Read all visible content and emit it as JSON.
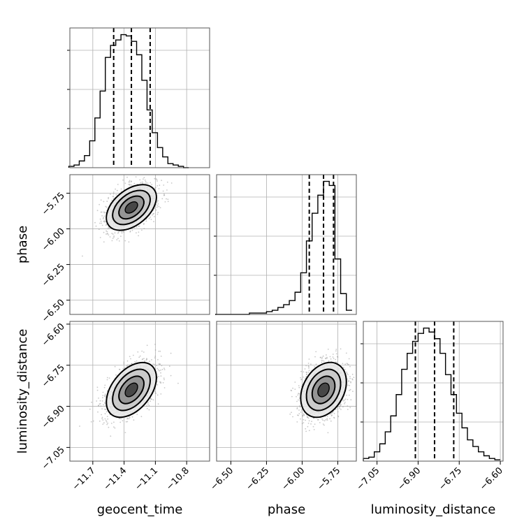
{
  "chart_data": {
    "type": "corner",
    "parameters": [
      {
        "name": "geocent_time",
        "range": [
          -11.92,
          -10.58
        ],
        "ticks": [
          -11.7,
          -11.4,
          -11.1,
          -10.8
        ],
        "tick_labels": [
          "−11.7",
          "−11.4",
          "−11.1",
          "−10.8"
        ],
        "quantiles": [
          -11.5,
          -11.33,
          -11.15
        ],
        "median": -11.33,
        "sigma": 0.12
      },
      {
        "name": "phase",
        "range": [
          -6.6,
          -5.62
        ],
        "ticks": [
          -6.5,
          -6.25,
          -6.0,
          -5.75
        ],
        "tick_labels": [
          "−6.50",
          "−6.25",
          "−6.00",
          "−5.75"
        ],
        "quantiles": [
          -5.95,
          -5.85,
          -5.78
        ],
        "median": -5.85,
        "sigma": 0.08
      },
      {
        "name": "luminosity_distance",
        "range": [
          -7.1,
          -6.59
        ],
        "ticks": [
          -7.05,
          -6.9,
          -6.75,
          -6.6
        ],
        "tick_labels": [
          "−7.05",
          "−6.90",
          "−6.75",
          "−6.60"
        ],
        "quantiles": [
          -6.91,
          -6.84,
          -6.77
        ],
        "median": -6.84,
        "sigma": 0.05
      }
    ],
    "histograms": [
      {
        "param": "geocent_time",
        "bin_edges": [
          -11.93,
          -11.88,
          -11.83,
          -11.78,
          -11.73,
          -11.68,
          -11.63,
          -11.58,
          -11.53,
          -11.48,
          -11.43,
          -11.38,
          -11.33,
          -11.28,
          -11.23,
          -11.18,
          -11.13,
          -11.08,
          -11.03,
          -10.98,
          -10.93,
          -10.88,
          -10.83,
          -10.78
        ],
        "counts": [
          1,
          2,
          5,
          9,
          20,
          37,
          57,
          82,
          91,
          95,
          99,
          98,
          94,
          84,
          65,
          43,
          26,
          15,
          8,
          3,
          2,
          1,
          0
        ]
      },
      {
        "param": "phase",
        "bin_edges": [
          -6.61,
          -6.57,
          -6.53,
          -6.49,
          -6.45,
          -6.41,
          -6.37,
          -6.33,
          -6.29,
          -6.25,
          -6.21,
          -6.17,
          -6.13,
          -6.09,
          -6.05,
          -6.01,
          -5.97,
          -5.93,
          -5.89,
          -5.85,
          -5.81,
          -5.77,
          -5.73,
          -5.69,
          -5.65
        ],
        "counts": [
          0,
          0,
          0,
          0,
          0,
          0,
          1,
          1,
          1,
          2,
          3,
          5,
          7,
          10,
          16,
          30,
          53,
          73,
          86,
          96,
          93,
          40,
          15,
          3
        ]
      },
      {
        "param": "luminosity_distance",
        "bin_edges": [
          -7.1,
          -7.08,
          -7.06,
          -7.04,
          -7.02,
          -7.0,
          -6.98,
          -6.96,
          -6.94,
          -6.92,
          -6.9,
          -6.88,
          -6.86,
          -6.84,
          -6.82,
          -6.8,
          -6.78,
          -6.76,
          -6.74,
          -6.72,
          -6.7,
          -6.68,
          -6.66,
          -6.64,
          -6.62,
          -6.6
        ],
        "counts": [
          2,
          3,
          7,
          13,
          22,
          34,
          50,
          69,
          81,
          90,
          96,
          100,
          97,
          92,
          81,
          65,
          50,
          36,
          25,
          16,
          11,
          7,
          4,
          2,
          1
        ]
      }
    ],
    "pair_correlations": [
      {
        "x": "geocent_time",
        "y": "phase",
        "rho": 0.45
      },
      {
        "x": "geocent_time",
        "y": "luminosity_distance",
        "rho": 0.45
      },
      {
        "x": "phase",
        "y": "luminosity_distance",
        "rho": 0.3
      }
    ],
    "grid": true
  },
  "colors": {
    "line": "#000000",
    "grid": "#b0b0b0",
    "points": "#9a9a9a"
  }
}
